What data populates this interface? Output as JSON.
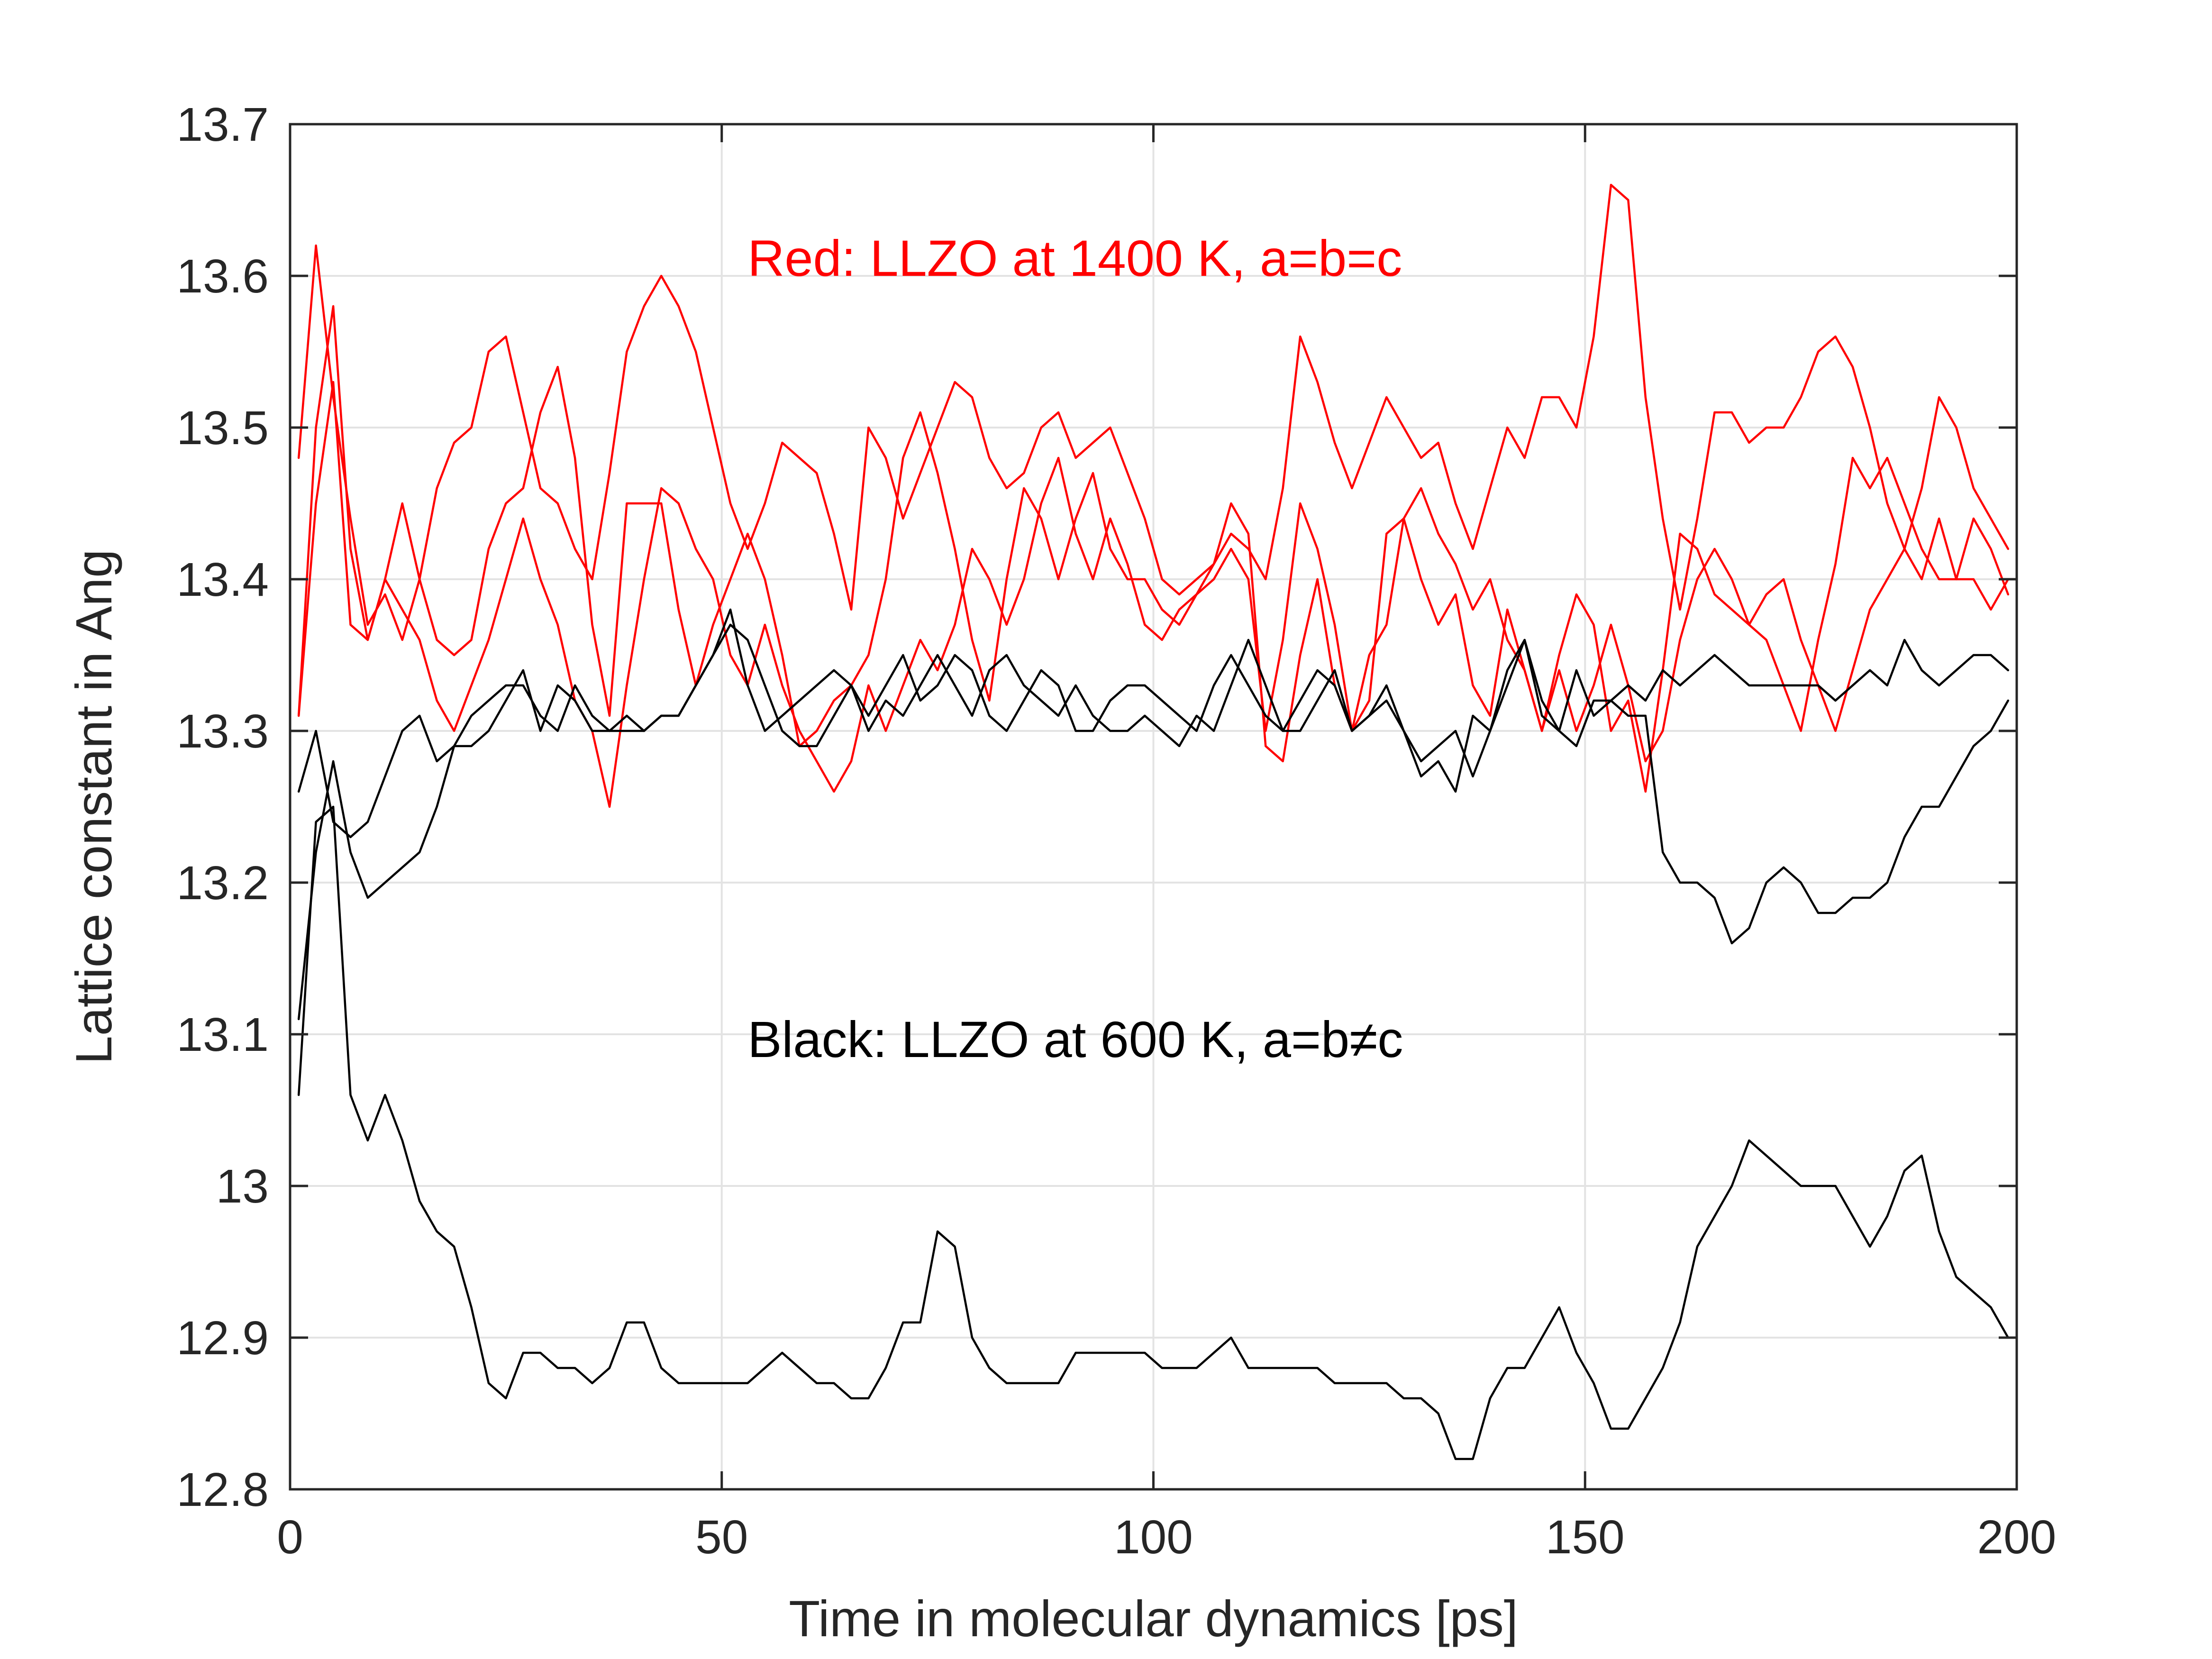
{
  "chart_data": {
    "type": "line",
    "xlabel": "Time in molecular dynamics [ps]",
    "ylabel": "Lattice constant in Ang",
    "xlim": [
      0,
      200
    ],
    "ylim": [
      12.8,
      13.7
    ],
    "grid": true,
    "x_ticks": [
      0,
      50,
      100,
      150,
      200
    ],
    "x_tick_labels": [
      "0",
      "50",
      "100",
      "150",
      "200"
    ],
    "y_ticks": [
      12.8,
      12.9,
      13.0,
      13.1,
      13.2,
      13.3,
      13.4,
      13.5,
      13.6,
      13.7
    ],
    "y_tick_labels": [
      "12.8",
      "12.9",
      "13",
      "13.1",
      "13.2",
      "13.3",
      "13.4",
      "13.5",
      "13.6",
      "13.7"
    ],
    "annotations": [
      {
        "text": "Red: LLZO at 1400 K, a=b=c",
        "color": "#ff0000",
        "x": 53,
        "y": 13.6
      },
      {
        "text": "Black: LLZO at 600 K, a=b≠c",
        "color": "#000000",
        "x": 53,
        "y": 13.085
      }
    ],
    "colors": {
      "red": "#ff0000",
      "black": "#000000"
    },
    "x": [
      1,
      3,
      5,
      7,
      9,
      11,
      13,
      15,
      17,
      19,
      21,
      23,
      25,
      27,
      29,
      31,
      33,
      35,
      37,
      39,
      41,
      43,
      45,
      47,
      49,
      51,
      53,
      55,
      57,
      59,
      61,
      63,
      65,
      67,
      69,
      71,
      73,
      75,
      77,
      79,
      81,
      83,
      85,
      87,
      89,
      91,
      93,
      95,
      97,
      99,
      101,
      103,
      105,
      107,
      109,
      111,
      113,
      115,
      117,
      119,
      121,
      123,
      125,
      127,
      129,
      131,
      133,
      135,
      137,
      139,
      141,
      143,
      145,
      147,
      149,
      151,
      153,
      155,
      157,
      159,
      161,
      163,
      165,
      167,
      169,
      171,
      173,
      175,
      177,
      179,
      181,
      183,
      185,
      187,
      189,
      191,
      193,
      195,
      197,
      199
    ],
    "series": [
      {
        "name": "red-1",
        "color": "#ff0000",
        "values": [
          13.48,
          13.62,
          13.52,
          13.44,
          13.37,
          13.39,
          13.36,
          13.4,
          13.46,
          13.49,
          13.5,
          13.55,
          13.56,
          13.51,
          13.46,
          13.45,
          13.42,
          13.4,
          13.47,
          13.55,
          13.58,
          13.6,
          13.58,
          13.55,
          13.5,
          13.45,
          13.42,
          13.45,
          13.49,
          13.48,
          13.47,
          13.43,
          13.38,
          13.5,
          13.48,
          13.44,
          13.47,
          13.5,
          13.53,
          13.52,
          13.48,
          13.46,
          13.47,
          13.5,
          13.51,
          13.48,
          13.49,
          13.5,
          13.47,
          13.44,
          13.4,
          13.39,
          13.4,
          13.41,
          13.43,
          13.42,
          13.4,
          13.46,
          13.56,
          13.53,
          13.49,
          13.46,
          13.49,
          13.52,
          13.5,
          13.48,
          13.49,
          13.45,
          13.42,
          13.46,
          13.5,
          13.48,
          13.52,
          13.52,
          13.5,
          13.56,
          13.66,
          13.65,
          13.52,
          13.44,
          13.38,
          13.44,
          13.51,
          13.51,
          13.49,
          13.5,
          13.5,
          13.52,
          13.55,
          13.56,
          13.54,
          13.5,
          13.45,
          13.42,
          13.46,
          13.52,
          13.5,
          13.46,
          13.44,
          13.42
        ]
      },
      {
        "name": "red-2",
        "color": "#ff0000",
        "values": [
          13.31,
          13.5,
          13.58,
          13.42,
          13.36,
          13.4,
          13.45,
          13.4,
          13.36,
          13.35,
          13.36,
          13.42,
          13.45,
          13.46,
          13.51,
          13.54,
          13.48,
          13.37,
          13.31,
          13.45,
          13.45,
          13.45,
          13.38,
          13.33,
          13.37,
          13.4,
          13.43,
          13.4,
          13.35,
          13.29,
          13.3,
          13.32,
          13.33,
          13.35,
          13.4,
          13.48,
          13.51,
          13.47,
          13.42,
          13.36,
          13.32,
          13.4,
          13.46,
          13.44,
          13.4,
          13.44,
          13.47,
          13.42,
          13.4,
          13.4,
          13.38,
          13.37,
          13.39,
          13.4,
          13.42,
          13.4,
          13.3,
          13.36,
          13.45,
          13.42,
          13.37,
          13.3,
          13.35,
          13.37,
          13.44,
          13.46,
          13.43,
          13.41,
          13.38,
          13.4,
          13.36,
          13.34,
          13.3,
          13.35,
          13.39,
          13.37,
          13.3,
          13.32,
          13.26,
          13.34,
          13.43,
          13.42,
          13.39,
          13.38,
          13.37,
          13.36,
          13.33,
          13.3,
          13.36,
          13.41,
          13.48,
          13.46,
          13.48,
          13.45,
          13.42,
          13.4,
          13.4,
          13.44,
          13.42,
          13.39
        ]
      },
      {
        "name": "red-3",
        "color": "#ff0000",
        "values": [
          13.31,
          13.45,
          13.53,
          13.37,
          13.36,
          13.4,
          13.38,
          13.36,
          13.32,
          13.3,
          13.33,
          13.36,
          13.4,
          13.44,
          13.4,
          13.37,
          13.32,
          13.3,
          13.25,
          13.33,
          13.4,
          13.46,
          13.45,
          13.42,
          13.4,
          13.35,
          13.33,
          13.37,
          13.33,
          13.3,
          13.28,
          13.26,
          13.28,
          13.33,
          13.3,
          13.33,
          13.36,
          13.34,
          13.37,
          13.42,
          13.4,
          13.37,
          13.4,
          13.45,
          13.48,
          13.43,
          13.4,
          13.44,
          13.41,
          13.37,
          13.36,
          13.38,
          13.39,
          13.41,
          13.45,
          13.43,
          13.29,
          13.28,
          13.35,
          13.4,
          13.33,
          13.3,
          13.32,
          13.43,
          13.44,
          13.4,
          13.37,
          13.39,
          13.33,
          13.31,
          13.38,
          13.34,
          13.3,
          13.34,
          13.3,
          13.33,
          13.37,
          13.33,
          13.28,
          13.3,
          13.36,
          13.4,
          13.42,
          13.4,
          13.37,
          13.39,
          13.4,
          13.36,
          13.33,
          13.3,
          13.34,
          13.38,
          13.4,
          13.42,
          13.4,
          13.44,
          13.4,
          13.4,
          13.38,
          13.4
        ]
      },
      {
        "name": "black-1",
        "color": "#000000",
        "values": [
          13.26,
          13.3,
          13.24,
          13.23,
          13.24,
          13.27,
          13.3,
          13.31,
          13.28,
          13.29,
          13.29,
          13.3,
          13.32,
          13.34,
          13.3,
          13.33,
          13.32,
          13.3,
          13.3,
          13.31,
          13.3,
          13.31,
          13.31,
          13.33,
          13.35,
          13.38,
          13.33,
          13.3,
          13.31,
          13.32,
          13.33,
          13.34,
          13.33,
          13.3,
          13.32,
          13.31,
          13.33,
          13.35,
          13.33,
          13.31,
          13.34,
          13.35,
          13.33,
          13.32,
          13.31,
          13.33,
          13.31,
          13.3,
          13.3,
          13.31,
          13.3,
          13.29,
          13.31,
          13.3,
          13.33,
          13.36,
          13.33,
          13.3,
          13.32,
          13.34,
          13.33,
          13.3,
          13.31,
          13.32,
          13.3,
          13.28,
          13.29,
          13.3,
          13.27,
          13.3,
          13.34,
          13.36,
          13.31,
          13.3,
          13.34,
          13.31,
          13.32,
          13.33,
          13.32,
          13.34,
          13.33,
          13.34,
          13.35,
          13.34,
          13.33,
          13.33,
          13.33,
          13.33,
          13.33,
          13.32,
          13.33,
          13.34,
          13.33,
          13.36,
          13.34,
          13.33,
          13.34,
          13.35,
          13.35,
          13.34
        ]
      },
      {
        "name": "black-2",
        "color": "#000000",
        "values": [
          13.11,
          13.22,
          13.28,
          13.22,
          13.19,
          13.2,
          13.21,
          13.22,
          13.25,
          13.29,
          13.31,
          13.32,
          13.33,
          13.33,
          13.31,
          13.3,
          13.33,
          13.31,
          13.3,
          13.3,
          13.3,
          13.31,
          13.31,
          13.33,
          13.35,
          13.37,
          13.36,
          13.33,
          13.3,
          13.29,
          13.29,
          13.31,
          13.33,
          13.31,
          13.33,
          13.35,
          13.32,
          13.33,
          13.35,
          13.34,
          13.31,
          13.3,
          13.32,
          13.34,
          13.33,
          13.3,
          13.3,
          13.32,
          13.33,
          13.33,
          13.32,
          13.31,
          13.3,
          13.33,
          13.35,
          13.33,
          13.31,
          13.3,
          13.3,
          13.32,
          13.34,
          13.3,
          13.31,
          13.33,
          13.3,
          13.27,
          13.28,
          13.26,
          13.31,
          13.3,
          13.33,
          13.36,
          13.32,
          13.3,
          13.29,
          13.32,
          13.32,
          13.31,
          13.31,
          13.22,
          13.2,
          13.2,
          13.19,
          13.16,
          13.17,
          13.2,
          13.21,
          13.2,
          13.18,
          13.18,
          13.19,
          13.19,
          13.2,
          13.23,
          13.25,
          13.25,
          13.27,
          13.29,
          13.3,
          13.32
        ]
      },
      {
        "name": "black-3",
        "color": "#000000",
        "values": [
          13.06,
          13.24,
          13.25,
          13.06,
          13.03,
          13.06,
          13.03,
          12.99,
          12.97,
          12.96,
          12.92,
          12.87,
          12.86,
          12.89,
          12.89,
          12.88,
          12.88,
          12.87,
          12.88,
          12.91,
          12.91,
          12.88,
          12.87,
          12.87,
          12.87,
          12.87,
          12.87,
          12.88,
          12.89,
          12.88,
          12.87,
          12.87,
          12.86,
          12.86,
          12.88,
          12.91,
          12.91,
          12.97,
          12.96,
          12.9,
          12.88,
          12.87,
          12.87,
          12.87,
          12.87,
          12.89,
          12.89,
          12.89,
          12.89,
          12.89,
          12.88,
          12.88,
          12.88,
          12.89,
          12.9,
          12.88,
          12.88,
          12.88,
          12.88,
          12.88,
          12.87,
          12.87,
          12.87,
          12.87,
          12.86,
          12.86,
          12.85,
          12.82,
          12.82,
          12.86,
          12.88,
          12.88,
          12.9,
          12.92,
          12.89,
          12.87,
          12.84,
          12.84,
          12.86,
          12.88,
          12.91,
          12.96,
          12.98,
          13.0,
          13.03,
          13.02,
          13.01,
          13.0,
          13.0,
          13.0,
          12.98,
          12.96,
          12.98,
          13.01,
          13.02,
          12.97,
          12.94,
          12.93,
          12.92,
          12.9
        ]
      }
    ]
  }
}
